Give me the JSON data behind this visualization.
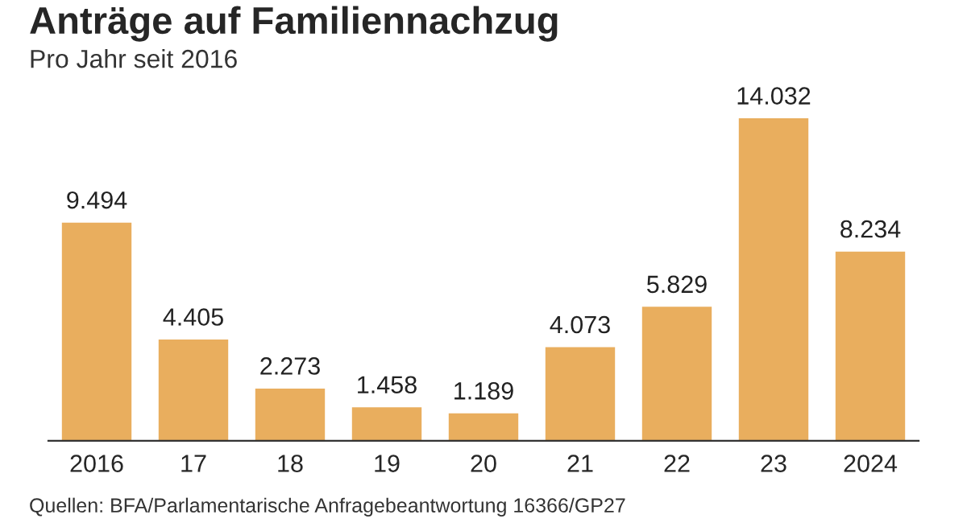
{
  "chart_data": {
    "type": "bar",
    "title": "Anträge auf Familiennachzug",
    "subtitle": "Pro Jahr seit 2016",
    "categories": [
      "2016",
      "17",
      "18",
      "19",
      "20",
      "21",
      "22",
      "23",
      "2024"
    ],
    "values": [
      9494,
      4405,
      2273,
      1458,
      1189,
      4073,
      5829,
      14032,
      8234
    ],
    "value_labels": [
      "9.494",
      "4.405",
      "2.273",
      "1.458",
      "1.189",
      "4.073",
      "5.829",
      "14.032",
      "8.234"
    ],
    "color": "#e9ae5e",
    "annotations": [
      "Quellen: BFA/Parlamentarische Anfragebeantwortung 16366/GP27"
    ]
  }
}
